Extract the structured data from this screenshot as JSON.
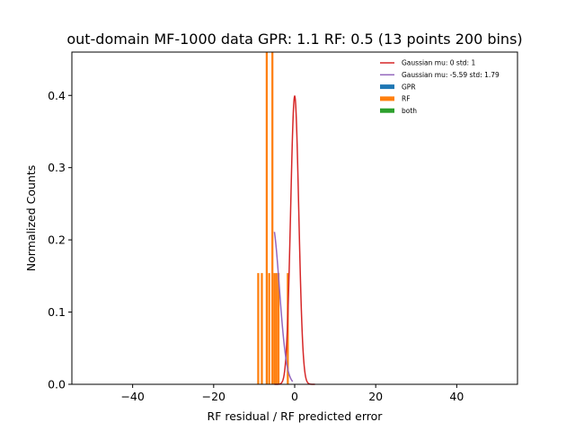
{
  "chart_data": {
    "type": "histogram",
    "title": "out-domain MF-1000 data GPR: 1.1 RF: 0.5 (13 points 200 bins)",
    "xlabel": "RF residual / RF predicted error",
    "ylabel": "Normalized Counts",
    "xlim": [
      -55,
      55
    ],
    "ylim": [
      0,
      0.46
    ],
    "xticks": [
      -40,
      -20,
      0,
      20,
      40
    ],
    "xtick_labels": [
      "−40",
      "−20",
      "0",
      "20",
      "40"
    ],
    "yticks": [
      0.0,
      0.1,
      0.2,
      0.3,
      0.4
    ],
    "ytick_labels": [
      "0.0",
      "0.1",
      "0.2",
      "0.3",
      "0.4"
    ],
    "legend_position": "upper-right",
    "legend": [
      {
        "label": "Gaussian mu: 0 std: 1",
        "kind": "line",
        "color": "#d62728"
      },
      {
        "label": "Gaussian mu: -5.59 std: 1.79",
        "kind": "line",
        "color": "#9467bd"
      },
      {
        "label": "GPR",
        "kind": "patch",
        "color": "#1f77b4"
      },
      {
        "label": "RF",
        "kind": "patch",
        "color": "#ff7f0e"
      },
      {
        "label": "both",
        "kind": "patch",
        "color": "#2ca02c"
      }
    ],
    "series": [
      {
        "name": "RF",
        "kind": "bars",
        "color": "#ff7f0e",
        "bin_width": 0.5,
        "bars": [
          {
            "x": -9.0,
            "height": 0.154
          },
          {
            "x": -8.1,
            "height": 0.154
          },
          {
            "x": -6.9,
            "height": 0.46
          },
          {
            "x": -6.3,
            "height": 0.154
          },
          {
            "x": -5.5,
            "height": 0.46
          },
          {
            "x": -5.0,
            "height": 0.154
          },
          {
            "x": -4.5,
            "height": 0.154
          },
          {
            "x": -4.0,
            "height": 0.154
          },
          {
            "x": -1.7,
            "height": 0.154
          }
        ]
      },
      {
        "name": "Gaussian mu: 0 std: 1",
        "kind": "gaussian",
        "color": "#d62728",
        "mu": 0,
        "std": 1,
        "x_range": [
          -5,
          5
        ]
      },
      {
        "name": "Gaussian mu: -5.59 std: 1.79",
        "kind": "gaussian",
        "color": "#9467bd",
        "mu": -5.59,
        "std": 1.79,
        "x_range": [
          -5.0,
          -0.5
        ]
      }
    ]
  }
}
